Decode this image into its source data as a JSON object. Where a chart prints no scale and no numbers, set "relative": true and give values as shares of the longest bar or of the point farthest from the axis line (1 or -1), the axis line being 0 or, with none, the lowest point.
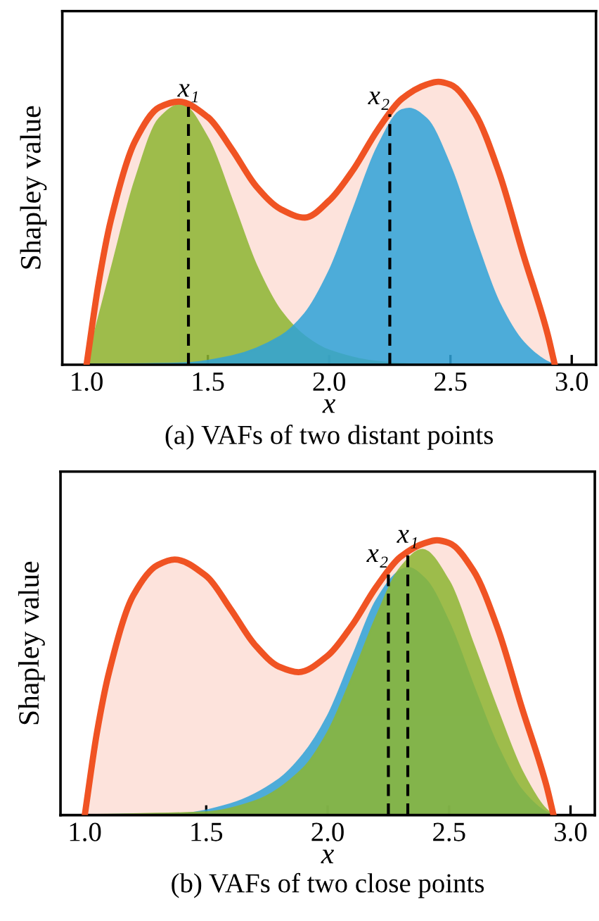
{
  "chart_data": [
    {
      "type": "area",
      "title": "(a) VAFs of two distant points",
      "xlabel": "x",
      "ylabel": "Shapley value",
      "relative": true,
      "xlim": [
        0.9,
        3.1
      ],
      "xticks": [
        {
          "value": 1.0,
          "label": "1.0"
        },
        {
          "value": 1.5,
          "label": "1.5"
        },
        {
          "value": 2.0,
          "label": "2.0"
        },
        {
          "value": 2.5,
          "label": "2.5"
        },
        {
          "value": 3.0,
          "label": "3.0"
        }
      ],
      "grid": false,
      "legend": false,
      "series": [
        {
          "color": "#f05323",
          "type": "line",
          "x": [
            1.0,
            1.05,
            1.1,
            1.2,
            1.3,
            1.38,
            1.5,
            1.6,
            1.7,
            1.8,
            1.9,
            2.0,
            2.1,
            2.2,
            2.3,
            2.4,
            2.45,
            2.5,
            2.6,
            2.7,
            2.8,
            2.9,
            2.93
          ],
          "values": [
            0,
            0.29,
            0.51,
            0.79,
            0.91,
            0.93,
            0.875,
            0.76,
            0.63,
            0.55,
            0.52,
            0.58,
            0.69,
            0.83,
            0.94,
            0.99,
            1.0,
            0.99,
            0.89,
            0.68,
            0.39,
            0.11,
            0
          ]
        },
        {
          "color": "#8db632",
          "x": [
            1.0,
            1.1,
            1.2,
            1.3,
            1.39,
            1.5,
            1.6,
            1.7,
            1.8,
            1.9,
            2.0,
            2.2,
            2.4,
            2.93
          ],
          "values": [
            0,
            0.33,
            0.65,
            0.87,
            0.92,
            0.8,
            0.58,
            0.35,
            0.19,
            0.1,
            0.05,
            0.01,
            0,
            0
          ]
        },
        {
          "color": "#2fa3d9",
          "x": [
            1.0,
            1.4,
            1.6,
            1.8,
            1.9,
            2.0,
            2.1,
            2.2,
            2.3,
            2.33,
            2.4,
            2.5,
            2.6,
            2.7,
            2.8,
            2.9,
            2.93
          ],
          "values": [
            0,
            0.005,
            0.03,
            0.1,
            0.18,
            0.33,
            0.55,
            0.77,
            0.9,
            0.905,
            0.87,
            0.7,
            0.45,
            0.22,
            0.08,
            0.01,
            0
          ]
        }
      ],
      "ref_lines": [
        {
          "axis": "x",
          "value": 1.42,
          "label": "x₁",
          "line_style": "dashed",
          "color": "#000000"
        },
        {
          "axis": "x",
          "value": 2.25,
          "label": "x₂",
          "line_style": "dashed",
          "color": "#000000"
        }
      ]
    },
    {
      "type": "area",
      "title": "(b) VAFs of two close points",
      "xlabel": "x",
      "ylabel": "Shapley value",
      "relative": true,
      "xlim": [
        0.9,
        3.1
      ],
      "xticks": [
        {
          "value": 1.0,
          "label": "1.0"
        },
        {
          "value": 1.5,
          "label": "1.5"
        },
        {
          "value": 2.0,
          "label": "2.0"
        },
        {
          "value": 2.5,
          "label": "2.5"
        },
        {
          "value": 3.0,
          "label": "3.0"
        }
      ],
      "grid": false,
      "legend": false,
      "series": [
        {
          "color": "#f05323",
          "type": "line",
          "x": [
            1.0,
            1.05,
            1.1,
            1.2,
            1.3,
            1.37,
            1.5,
            1.6,
            1.7,
            1.8,
            1.88,
            2.0,
            2.1,
            2.2,
            2.3,
            2.4,
            2.45,
            2.5,
            2.6,
            2.7,
            2.8,
            2.9,
            2.93
          ],
          "values": [
            0,
            0.3,
            0.52,
            0.8,
            0.91,
            0.93,
            0.87,
            0.75,
            0.62,
            0.54,
            0.52,
            0.58,
            0.69,
            0.83,
            0.94,
            0.99,
            1.0,
            0.99,
            0.89,
            0.68,
            0.39,
            0.11,
            0
          ]
        },
        {
          "color": "#2fa3d9",
          "x": [
            1.0,
            1.4,
            1.6,
            1.8,
            1.9,
            2.0,
            2.1,
            2.2,
            2.3,
            2.33,
            2.4,
            2.5,
            2.6,
            2.7,
            2.8,
            2.9,
            2.93
          ],
          "values": [
            0,
            0.005,
            0.04,
            0.13,
            0.22,
            0.36,
            0.57,
            0.78,
            0.89,
            0.9,
            0.86,
            0.7,
            0.47,
            0.25,
            0.09,
            0.01,
            0
          ]
        },
        {
          "color": "#8db632",
          "x": [
            1.0,
            1.5,
            1.7,
            1.9,
            2.0,
            2.1,
            2.2,
            2.3,
            2.39,
            2.5,
            2.6,
            2.7,
            2.8,
            2.9,
            2.93
          ],
          "values": [
            0,
            0.01,
            0.05,
            0.17,
            0.3,
            0.5,
            0.72,
            0.9,
            0.965,
            0.85,
            0.62,
            0.38,
            0.16,
            0.02,
            0
          ]
        }
      ],
      "ref_lines": [
        {
          "axis": "x",
          "value": 2.33,
          "label": "x₁",
          "line_style": "dashed",
          "color": "#000000"
        },
        {
          "axis": "x",
          "value": 2.25,
          "label": "x₂",
          "line_style": "dashed",
          "color": "#000000"
        }
      ]
    }
  ]
}
